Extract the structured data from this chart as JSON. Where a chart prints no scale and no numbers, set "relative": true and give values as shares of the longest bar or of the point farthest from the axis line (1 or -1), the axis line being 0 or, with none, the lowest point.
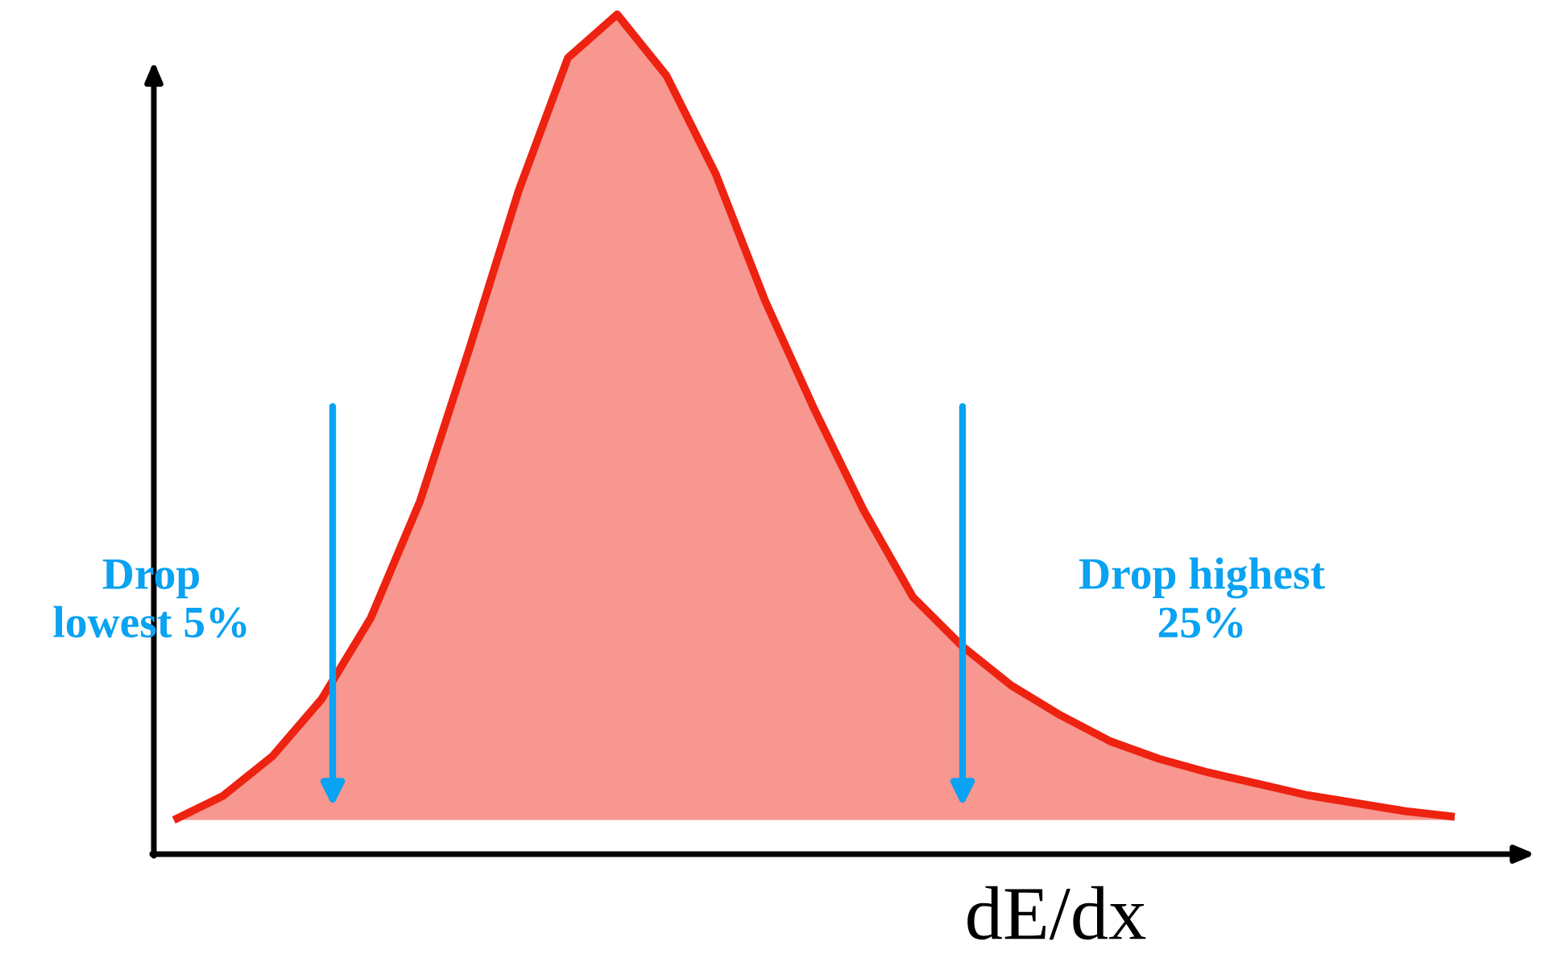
{
  "chart_data": {
    "type": "area",
    "relative": true,
    "xlabel": "dE/dx",
    "categories": [
      null,
      null,
      null,
      null,
      null,
      null,
      null,
      null,
      null,
      null,
      null,
      null,
      null,
      null,
      null,
      null,
      null,
      null,
      null,
      null,
      null,
      null,
      null,
      null,
      null,
      null,
      null
    ],
    "series": [
      {
        "color": "#ee2211",
        "values": [
          0,
          0.03,
          0.079,
          0.15,
          0.251,
          0.396,
          0.585,
          0.781,
          0.946,
          1,
          0.924,
          0.802,
          0.645,
          0.51,
          0.385,
          0.277,
          0.216,
          0.167,
          0.13,
          0.098,
          0.076,
          0.059,
          0.045,
          0.031,
          0.021,
          0.011,
          0.004
        ]
      }
    ],
    "annotations": [
      "Drop\nlowest 5%",
      "Drop highest\n25%"
    ]
  }
}
